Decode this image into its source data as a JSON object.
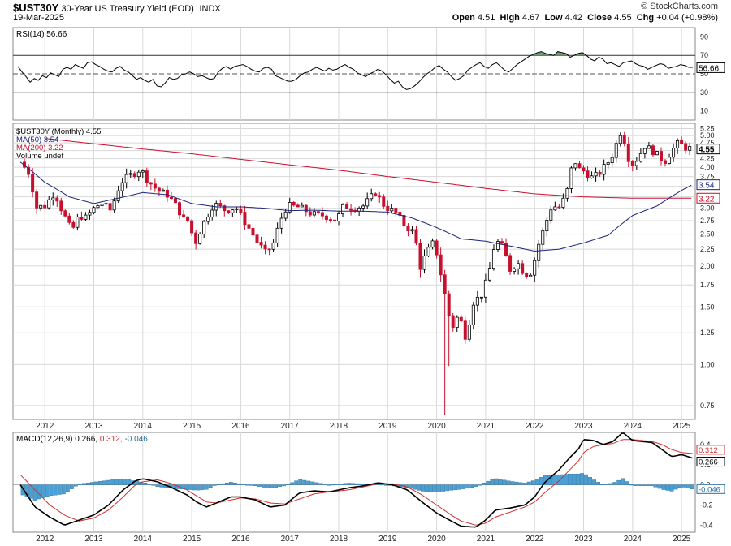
{
  "header": {
    "symbol": "$UST30Y",
    "description": "30-Year US Treasury Yield (EOD)",
    "exchange": "INDX",
    "date": "19-Mar-2025",
    "brand": "© StockCharts.com",
    "ohlc": {
      "open_label": "Open",
      "open": "4.51",
      "high_label": "High",
      "high": "4.67",
      "low_label": "Low",
      "low": "4.42",
      "close_label": "Close",
      "close": "4.55",
      "chg_label": "Chg",
      "chg": "+0.04 (+0.98%)"
    }
  },
  "colors": {
    "up": "#000000",
    "down": "#c8102e",
    "ma50": "#1a237e",
    "ma200": "#c8102e",
    "rsi": "#000000",
    "macd": "#000000",
    "signal": "#d32f2f",
    "hist": "#4a9fd4",
    "grid": "#d8d8d8",
    "rsi_overbought_fill": "#5a8a5a",
    "rsi_oversold_fill": "#c8102e"
  },
  "chart_data": [
    {
      "type": "line",
      "panel": "rsi",
      "legend": "RSI(14) 56.66",
      "y_ticks": [
        10,
        30,
        50,
        70,
        90
      ],
      "ylim": [
        0,
        100
      ],
      "reference_lines": [
        30,
        50,
        70
      ],
      "last_value_label": "56.66",
      "values": [
        58,
        52,
        47,
        41,
        45,
        43,
        48,
        46,
        51,
        49,
        47,
        55,
        57,
        55,
        60,
        58,
        56,
        62,
        63,
        60,
        58,
        55,
        53,
        52,
        56,
        58,
        54,
        52,
        48,
        44,
        46,
        43,
        41,
        44,
        37,
        36,
        40,
        46,
        44,
        45,
        49,
        50,
        52,
        50,
        47,
        48,
        46,
        44,
        45,
        52,
        56,
        58,
        55,
        58,
        59,
        60,
        58,
        55,
        53,
        52,
        56,
        57,
        55,
        48,
        46,
        44,
        42,
        42,
        44,
        48,
        51,
        52,
        55,
        57,
        55,
        53,
        56,
        54,
        55,
        58,
        60,
        57,
        55,
        51,
        49,
        47,
        50,
        52,
        55,
        53,
        49,
        44,
        40,
        42,
        36,
        33,
        34,
        37,
        41,
        46,
        50,
        53,
        57,
        59,
        55,
        52,
        47,
        43,
        45,
        48,
        54,
        57,
        60,
        62,
        58,
        56,
        60,
        62,
        58,
        54,
        52,
        56,
        60,
        63,
        66,
        69,
        71,
        73,
        74,
        72,
        71,
        70,
        74,
        73,
        72,
        68,
        70,
        72,
        73,
        70,
        66,
        64,
        68,
        66,
        61,
        62,
        60,
        58,
        62,
        63,
        64,
        61,
        59,
        58,
        55,
        57,
        59,
        61,
        60,
        56,
        57,
        58,
        60,
        59,
        57,
        57
      ]
    },
    {
      "type": "candlestick",
      "panel": "price",
      "legend": [
        "$UST30Y (Monthly) 4.55",
        "MA(50) 3.54",
        "MA(200) 3.22",
        "Volume undef"
      ],
      "scale": "log",
      "ylim": [
        0.68,
        5.45
      ],
      "y_ticks": [
        0.75,
        1.0,
        1.25,
        1.5,
        1.75,
        2.0,
        2.25,
        2.5,
        2.75,
        3.0,
        3.25,
        3.5,
        3.75,
        4.0,
        4.25,
        4.5,
        4.75,
        5.0,
        5.25
      ],
      "x_ticks": [
        "2012",
        "2013",
        "2014",
        "2015",
        "2016",
        "2017",
        "2018",
        "2019",
        "2020",
        "2021",
        "2022",
        "2023",
        "2024",
        "2025"
      ],
      "last_value_labels": {
        "close": "4.55",
        "ma50": "3.54",
        "ma200": "3.22"
      },
      "close_anchors": [
        [
          2011.5,
          4.15
        ],
        [
          2011.67,
          3.85
        ],
        [
          2011.83,
          3.02
        ],
        [
          2012.0,
          3.05
        ],
        [
          2012.2,
          3.35
        ],
        [
          2012.35,
          2.95
        ],
        [
          2012.55,
          2.55
        ],
        [
          2012.7,
          2.85
        ],
        [
          2012.85,
          2.8
        ],
        [
          2012.95,
          2.95
        ],
        [
          2013.15,
          3.12
        ],
        [
          2013.35,
          2.95
        ],
        [
          2013.55,
          3.6
        ],
        [
          2013.7,
          3.75
        ],
        [
          2013.85,
          3.85
        ],
        [
          2013.95,
          3.96
        ],
        [
          2014.1,
          3.65
        ],
        [
          2014.3,
          3.4
        ],
        [
          2014.5,
          3.3
        ],
        [
          2014.65,
          3.1
        ],
        [
          2014.85,
          2.75
        ],
        [
          2014.95,
          2.75
        ],
        [
          2015.05,
          2.3
        ],
        [
          2015.2,
          2.62
        ],
        [
          2015.45,
          3.1
        ],
        [
          2015.7,
          2.95
        ],
        [
          2015.9,
          3.02
        ],
        [
          2016.1,
          2.7
        ],
        [
          2016.35,
          2.35
        ],
        [
          2016.5,
          2.2
        ],
        [
          2016.65,
          2.3
        ],
        [
          2016.85,
          2.85
        ],
        [
          2016.95,
          3.06
        ],
        [
          2017.2,
          3.02
        ],
        [
          2017.45,
          2.88
        ],
        [
          2017.7,
          2.85
        ],
        [
          2017.95,
          2.75
        ],
        [
          2018.1,
          3.05
        ],
        [
          2018.3,
          3.0
        ],
        [
          2018.5,
          3.05
        ],
        [
          2018.75,
          3.35
        ],
        [
          2018.95,
          3.02
        ],
        [
          2019.15,
          2.93
        ],
        [
          2019.35,
          2.65
        ],
        [
          2019.55,
          2.52
        ],
        [
          2019.65,
          1.96
        ],
        [
          2019.8,
          2.2
        ],
        [
          2019.95,
          2.38
        ],
        [
          2020.05,
          2.0
        ],
        [
          2020.15,
          1.68
        ],
        [
          2020.3,
          1.28
        ],
        [
          2020.45,
          1.42
        ],
        [
          2020.6,
          1.2
        ],
        [
          2020.75,
          1.55
        ],
        [
          2020.95,
          1.65
        ],
        [
          2021.1,
          2.0
        ],
        [
          2021.2,
          2.4
        ],
        [
          2021.35,
          2.28
        ],
        [
          2021.5,
          1.95
        ],
        [
          2021.65,
          2.05
        ],
        [
          2021.8,
          1.88
        ],
        [
          2021.95,
          1.92
        ],
        [
          2022.05,
          2.25
        ],
        [
          2022.2,
          2.62
        ],
        [
          2022.35,
          3.05
        ],
        [
          2022.5,
          3.02
        ],
        [
          2022.65,
          3.3
        ],
        [
          2022.8,
          4.25
        ],
        [
          2022.9,
          3.95
        ],
        [
          2023.0,
          3.9
        ],
        [
          2023.15,
          3.72
        ],
        [
          2023.3,
          3.8
        ],
        [
          2023.5,
          4.15
        ],
        [
          2023.6,
          4.4
        ],
        [
          2023.75,
          5.1
        ],
        [
          2023.85,
          4.75
        ],
        [
          2023.95,
          4.03
        ],
        [
          2024.1,
          4.25
        ],
        [
          2024.25,
          4.65
        ],
        [
          2024.4,
          4.5
        ],
        [
          2024.55,
          4.3
        ],
        [
          2024.65,
          4.15
        ],
        [
          2024.8,
          4.5
        ],
        [
          2024.95,
          4.78
        ],
        [
          2025.05,
          4.6
        ],
        [
          2025.15,
          4.58
        ],
        [
          2025.22,
          4.55
        ]
      ],
      "ma50_anchors": [
        [
          2011.5,
          4.15
        ],
        [
          2012.0,
          3.6
        ],
        [
          2012.5,
          3.25
        ],
        [
          2013.0,
          3.1
        ],
        [
          2013.5,
          3.22
        ],
        [
          2014.0,
          3.35
        ],
        [
          2014.5,
          3.3
        ],
        [
          2015.0,
          3.1
        ],
        [
          2015.5,
          3.03
        ],
        [
          2016.0,
          3.03
        ],
        [
          2016.5,
          3.0
        ],
        [
          2017.0,
          2.95
        ],
        [
          2017.5,
          2.96
        ],
        [
          2018.0,
          2.94
        ],
        [
          2018.5,
          2.94
        ],
        [
          2019.0,
          2.92
        ],
        [
          2019.5,
          2.8
        ],
        [
          2020.0,
          2.62
        ],
        [
          2020.5,
          2.42
        ],
        [
          2021.0,
          2.38
        ],
        [
          2021.5,
          2.3
        ],
        [
          2022.0,
          2.22
        ],
        [
          2022.5,
          2.25
        ],
        [
          2023.0,
          2.35
        ],
        [
          2023.5,
          2.48
        ],
        [
          2024.0,
          2.85
        ],
        [
          2024.5,
          3.05
        ],
        [
          2025.0,
          3.4
        ],
        [
          2025.22,
          3.54
        ]
      ],
      "ma200_anchors": [
        [
          2012.0,
          4.9
        ],
        [
          2013.0,
          4.72
        ],
        [
          2014.0,
          4.55
        ],
        [
          2015.0,
          4.4
        ],
        [
          2016.0,
          4.23
        ],
        [
          2017.0,
          4.07
        ],
        [
          2018.0,
          3.92
        ],
        [
          2019.0,
          3.75
        ],
        [
          2020.0,
          3.6
        ],
        [
          2021.0,
          3.45
        ],
        [
          2022.0,
          3.32
        ],
        [
          2023.0,
          3.25
        ],
        [
          2024.0,
          3.22
        ],
        [
          2025.0,
          3.22
        ],
        [
          2025.22,
          3.22
        ]
      ]
    },
    {
      "type": "line",
      "panel": "macd",
      "legend": "MACD(12,26,9) 0.266, 0.312, -0.046",
      "ylim": [
        -0.47,
        0.52
      ],
      "y_ticks": [
        -0.4,
        -0.2,
        0.0,
        0.2,
        0.4
      ],
      "x_ticks": [
        "2012",
        "2013",
        "2014",
        "2015",
        "2016",
        "2017",
        "2018",
        "2019",
        "2020",
        "2021",
        "2022",
        "2023",
        "2024",
        "2025"
      ],
      "last_value_labels": {
        "signal": "0.312",
        "macd": "0.266",
        "histogram": "-0.046"
      },
      "series": [
        {
          "name": "MACD",
          "anchors": [
            [
              2011.5,
              0.0
            ],
            [
              2011.8,
              -0.22
            ],
            [
              2012.1,
              -0.32
            ],
            [
              2012.4,
              -0.4
            ],
            [
              2012.7,
              -0.35
            ],
            [
              2013.0,
              -0.3
            ],
            [
              2013.3,
              -0.2
            ],
            [
              2013.6,
              -0.05
            ],
            [
              2013.85,
              0.04
            ],
            [
              2014.0,
              0.06
            ],
            [
              2014.3,
              0.03
            ],
            [
              2014.6,
              -0.03
            ],
            [
              2014.9,
              -0.1
            ],
            [
              2015.1,
              -0.17
            ],
            [
              2015.3,
              -0.22
            ],
            [
              2015.5,
              -0.18
            ],
            [
              2015.8,
              -0.12
            ],
            [
              2016.0,
              -0.12
            ],
            [
              2016.3,
              -0.15
            ],
            [
              2016.6,
              -0.22
            ],
            [
              2016.9,
              -0.2
            ],
            [
              2017.2,
              -0.08
            ],
            [
              2017.5,
              -0.06
            ],
            [
              2017.8,
              -0.07
            ],
            [
              2018.2,
              -0.03
            ],
            [
              2018.5,
              -0.01
            ],
            [
              2018.8,
              0.02
            ],
            [
              2019.1,
              0.0
            ],
            [
              2019.4,
              -0.05
            ],
            [
              2019.7,
              -0.17
            ],
            [
              2020.0,
              -0.28
            ],
            [
              2020.3,
              -0.36
            ],
            [
              2020.5,
              -0.41
            ],
            [
              2020.8,
              -0.42
            ],
            [
              2021.0,
              -0.35
            ],
            [
              2021.2,
              -0.25
            ],
            [
              2021.5,
              -0.23
            ],
            [
              2021.8,
              -0.2
            ],
            [
              2022.0,
              -0.12
            ],
            [
              2022.2,
              0.02
            ],
            [
              2022.5,
              0.15
            ],
            [
              2022.7,
              0.26
            ],
            [
              2022.9,
              0.36
            ],
            [
              2023.0,
              0.45
            ],
            [
              2023.2,
              0.44
            ],
            [
              2023.4,
              0.4
            ],
            [
              2023.6,
              0.43
            ],
            [
              2023.8,
              0.52
            ],
            [
              2024.0,
              0.44
            ],
            [
              2024.2,
              0.43
            ],
            [
              2024.4,
              0.42
            ],
            [
              2024.6,
              0.35
            ],
            [
              2024.8,
              0.28
            ],
            [
              2025.0,
              0.3
            ],
            [
              2025.22,
              0.266
            ]
          ]
        },
        {
          "name": "Signal",
          "anchors": [
            [
              2011.5,
              0.1
            ],
            [
              2011.8,
              -0.05
            ],
            [
              2012.1,
              -0.2
            ],
            [
              2012.4,
              -0.3
            ],
            [
              2012.7,
              -0.36
            ],
            [
              2013.0,
              -0.33
            ],
            [
              2013.3,
              -0.25
            ],
            [
              2013.6,
              -0.12
            ],
            [
              2013.85,
              0.0
            ],
            [
              2014.0,
              0.03
            ],
            [
              2014.3,
              0.05
            ],
            [
              2014.6,
              0.01
            ],
            [
              2014.9,
              -0.05
            ],
            [
              2015.1,
              -0.11
            ],
            [
              2015.3,
              -0.17
            ],
            [
              2015.5,
              -0.18
            ],
            [
              2015.8,
              -0.15
            ],
            [
              2016.0,
              -0.13
            ],
            [
              2016.3,
              -0.14
            ],
            [
              2016.6,
              -0.18
            ],
            [
              2016.9,
              -0.19
            ],
            [
              2017.2,
              -0.14
            ],
            [
              2017.5,
              -0.09
            ],
            [
              2017.8,
              -0.07
            ],
            [
              2018.2,
              -0.05
            ],
            [
              2018.5,
              -0.02
            ],
            [
              2018.8,
              0.01
            ],
            [
              2019.1,
              0.01
            ],
            [
              2019.4,
              -0.02
            ],
            [
              2019.7,
              -0.1
            ],
            [
              2020.0,
              -0.2
            ],
            [
              2020.3,
              -0.3
            ],
            [
              2020.5,
              -0.36
            ],
            [
              2020.8,
              -0.4
            ],
            [
              2021.0,
              -0.38
            ],
            [
              2021.2,
              -0.32
            ],
            [
              2021.5,
              -0.27
            ],
            [
              2021.8,
              -0.22
            ],
            [
              2022.0,
              -0.17
            ],
            [
              2022.2,
              -0.08
            ],
            [
              2022.5,
              0.04
            ],
            [
              2022.7,
              0.14
            ],
            [
              2022.9,
              0.24
            ],
            [
              2023.0,
              0.32
            ],
            [
              2023.2,
              0.38
            ],
            [
              2023.4,
              0.4
            ],
            [
              2023.6,
              0.41
            ],
            [
              2023.8,
              0.45
            ],
            [
              2024.0,
              0.45
            ],
            [
              2024.2,
              0.44
            ],
            [
              2024.4,
              0.43
            ],
            [
              2024.6,
              0.4
            ],
            [
              2024.8,
              0.35
            ],
            [
              2025.0,
              0.32
            ],
            [
              2025.22,
              0.312
            ]
          ]
        }
      ]
    }
  ]
}
